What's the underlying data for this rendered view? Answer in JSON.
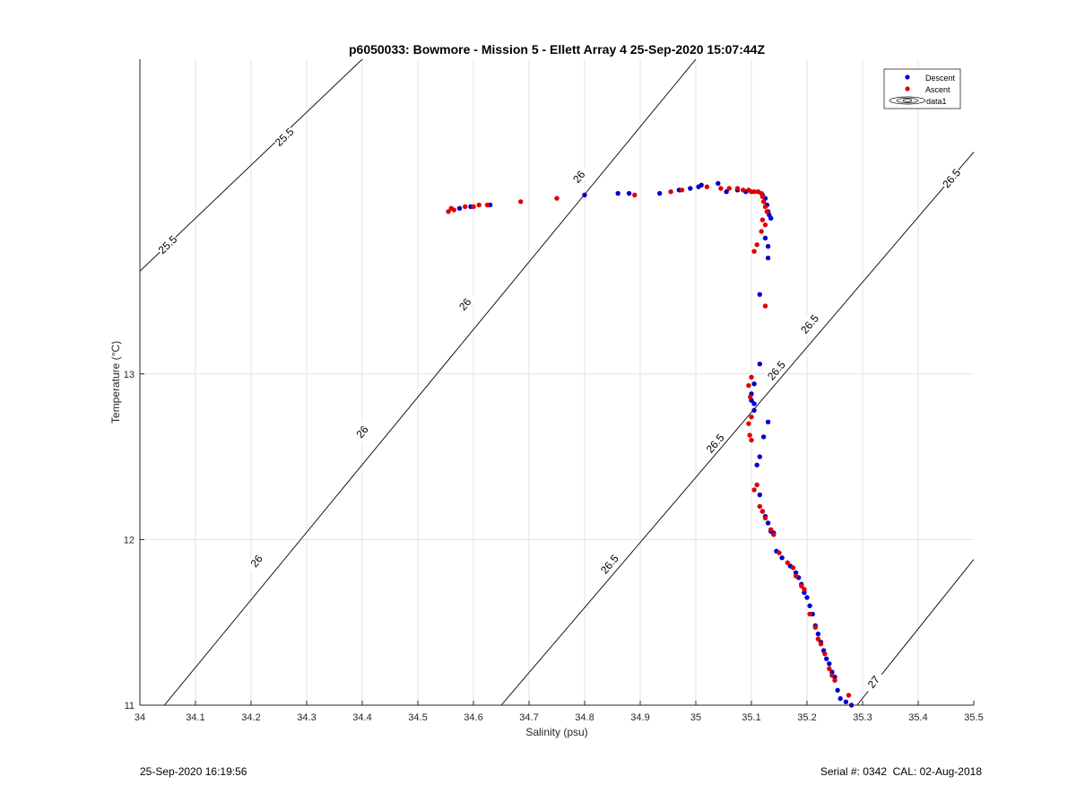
{
  "footer": {
    "timestamp": "25-Sep-2020 16:19:56",
    "serial": "Serial #: 0342",
    "calibration": "CAL: 02-Aug-2018"
  },
  "chart_data": {
    "type": "scatter",
    "title": "p6050033: Bowmore - Mission 5 - Ellett Array 4 25-Sep-2020 15:07:44Z",
    "xlabel": "Salinity (psu)",
    "ylabel": "Temperature (°C)",
    "xlim": [
      34,
      35.5
    ],
    "ylim": [
      11,
      14.9
    ],
    "xticks": [
      34,
      34.1,
      34.2,
      34.3,
      34.4,
      34.5,
      34.6,
      34.7,
      34.8,
      34.9,
      35,
      35.1,
      35.2,
      35.3,
      35.4,
      35.5
    ],
    "xtick_labels": [
      "34",
      "34.1",
      "34.2",
      "34.3",
      "34.4",
      "34.5",
      "34.6",
      "34.7",
      "34.8",
      "34.9",
      "35",
      "35.1",
      "35.2",
      "35.3",
      "35.4",
      "35.5"
    ],
    "yticks": [
      11,
      12,
      13
    ],
    "ytick_labels": [
      "11",
      "12",
      "13"
    ],
    "grid": true,
    "legend_position": "top-right",
    "colors": {
      "descent": "#0000cc",
      "ascent": "#dd0000",
      "contour": "#000000",
      "grid": "#e3e3e3"
    },
    "legend": [
      {
        "label": "Descent",
        "marker": "dot",
        "color": "#0000cc"
      },
      {
        "label": "Ascent",
        "marker": "dot",
        "color": "#dd0000"
      },
      {
        "label": "data1",
        "marker": "contour"
      }
    ],
    "contours": [
      {
        "level": "25.5",
        "points": [
          [
            34.0,
            13.62
          ],
          [
            34.4,
            14.9
          ]
        ],
        "labels": [
          [
            34.05,
            13.78
          ],
          [
            34.26,
            14.43
          ]
        ]
      },
      {
        "level": "26",
        "points": [
          [
            34.0,
            10.82
          ],
          [
            35.0,
            14.9
          ]
        ],
        "labels": [
          [
            34.025,
            10.92
          ],
          [
            34.21,
            11.87
          ],
          [
            34.4,
            12.65
          ],
          [
            34.585,
            13.42
          ],
          [
            34.79,
            14.19
          ],
          [
            34.995,
            15.0
          ]
        ]
      },
      {
        "level": "26.5",
        "points": [
          [
            34.65,
            11.0
          ],
          [
            35.5,
            14.34
          ]
        ],
        "labels": [
          [
            34.845,
            11.85
          ],
          [
            35.035,
            12.58
          ],
          [
            35.145,
            13.02
          ],
          [
            35.205,
            13.3
          ],
          [
            35.46,
            14.18
          ]
        ]
      },
      {
        "level": "27",
        "points": [
          [
            35.29,
            11.0
          ],
          [
            35.5,
            11.88
          ]
        ],
        "labels": [
          [
            35.32,
            11.14
          ]
        ]
      }
    ],
    "series": [
      {
        "name": "Descent",
        "points": [
          [
            34.575,
            14.0
          ],
          [
            34.595,
            14.01
          ],
          [
            34.63,
            14.02
          ],
          [
            34.8,
            14.08
          ],
          [
            34.86,
            14.09
          ],
          [
            34.88,
            14.09
          ],
          [
            34.935,
            14.09
          ],
          [
            34.97,
            14.11
          ],
          [
            34.99,
            14.12
          ],
          [
            35.005,
            14.13
          ],
          [
            35.01,
            14.14
          ],
          [
            35.04,
            14.15
          ],
          [
            35.055,
            14.1
          ],
          [
            35.075,
            14.11
          ],
          [
            35.09,
            14.1
          ],
          [
            35.12,
            14.08
          ],
          [
            35.125,
            14.06
          ],
          [
            35.128,
            14.02
          ],
          [
            35.13,
            13.98
          ],
          [
            35.132,
            13.96
          ],
          [
            35.135,
            13.94
          ],
          [
            35.125,
            13.82
          ],
          [
            35.13,
            13.77
          ],
          [
            35.13,
            13.7
          ],
          [
            35.115,
            13.48
          ],
          [
            35.115,
            13.06
          ],
          [
            35.105,
            12.94
          ],
          [
            35.1,
            12.88
          ],
          [
            35.1,
            12.84
          ],
          [
            35.105,
            12.82
          ],
          [
            35.105,
            12.78
          ],
          [
            35.13,
            12.71
          ],
          [
            35.122,
            12.62
          ],
          [
            35.115,
            12.5
          ],
          [
            35.11,
            12.45
          ],
          [
            35.115,
            12.27
          ],
          [
            35.12,
            12.17
          ],
          [
            35.125,
            12.14
          ],
          [
            35.13,
            12.1
          ],
          [
            35.135,
            12.05
          ],
          [
            35.14,
            12.04
          ],
          [
            35.145,
            11.93
          ],
          [
            35.155,
            11.89
          ],
          [
            35.17,
            11.84
          ],
          [
            35.18,
            11.8
          ],
          [
            35.185,
            11.77
          ],
          [
            35.19,
            11.73
          ],
          [
            35.195,
            11.68
          ],
          [
            35.2,
            11.65
          ],
          [
            35.205,
            11.6
          ],
          [
            35.21,
            11.55
          ],
          [
            35.215,
            11.48
          ],
          [
            35.22,
            11.43
          ],
          [
            35.225,
            11.38
          ],
          [
            35.23,
            11.33
          ],
          [
            35.235,
            11.28
          ],
          [
            35.24,
            11.25
          ],
          [
            35.245,
            11.2
          ],
          [
            35.25,
            11.17
          ],
          [
            35.255,
            11.09
          ],
          [
            35.26,
            11.04
          ],
          [
            35.27,
            11.02
          ],
          [
            35.28,
            11.0
          ]
        ]
      },
      {
        "name": "Ascent",
        "points": [
          [
            34.555,
            13.98
          ],
          [
            34.56,
            14.0
          ],
          [
            34.565,
            13.99
          ],
          [
            34.585,
            14.01
          ],
          [
            34.6,
            14.01
          ],
          [
            34.61,
            14.02
          ],
          [
            34.625,
            14.02
          ],
          [
            34.685,
            14.04
          ],
          [
            34.75,
            14.06
          ],
          [
            34.89,
            14.08
          ],
          [
            34.955,
            14.1
          ],
          [
            34.975,
            14.11
          ],
          [
            35.02,
            14.13
          ],
          [
            35.045,
            14.12
          ],
          [
            35.06,
            14.12
          ],
          [
            35.075,
            14.12
          ],
          [
            35.085,
            14.11
          ],
          [
            35.095,
            14.11
          ],
          [
            35.1,
            14.1
          ],
          [
            35.105,
            14.1
          ],
          [
            35.112,
            14.1
          ],
          [
            35.118,
            14.09
          ],
          [
            35.12,
            14.07
          ],
          [
            35.122,
            14.04
          ],
          [
            35.125,
            14.01
          ],
          [
            35.128,
            13.98
          ],
          [
            35.12,
            13.93
          ],
          [
            35.125,
            13.9
          ],
          [
            35.118,
            13.86
          ],
          [
            35.11,
            13.78
          ],
          [
            35.105,
            13.74
          ],
          [
            35.125,
            13.41
          ],
          [
            35.1,
            12.98
          ],
          [
            35.095,
            12.93
          ],
          [
            35.098,
            12.86
          ],
          [
            35.1,
            12.74
          ],
          [
            35.095,
            12.7
          ],
          [
            35.097,
            12.63
          ],
          [
            35.1,
            12.6
          ],
          [
            35.11,
            12.33
          ],
          [
            35.105,
            12.3
          ],
          [
            35.115,
            12.2
          ],
          [
            35.12,
            12.17
          ],
          [
            35.125,
            12.13
          ],
          [
            35.135,
            12.06
          ],
          [
            35.14,
            12.03
          ],
          [
            35.15,
            11.92
          ],
          [
            35.165,
            11.86
          ],
          [
            35.175,
            11.83
          ],
          [
            35.18,
            11.78
          ],
          [
            35.19,
            11.72
          ],
          [
            35.195,
            11.7
          ],
          [
            35.205,
            11.55
          ],
          [
            35.215,
            11.47
          ],
          [
            35.22,
            11.4
          ],
          [
            35.225,
            11.37
          ],
          [
            35.232,
            11.31
          ],
          [
            35.24,
            11.22
          ],
          [
            35.245,
            11.18
          ],
          [
            35.25,
            11.15
          ],
          [
            35.275,
            11.06
          ]
        ]
      }
    ]
  }
}
